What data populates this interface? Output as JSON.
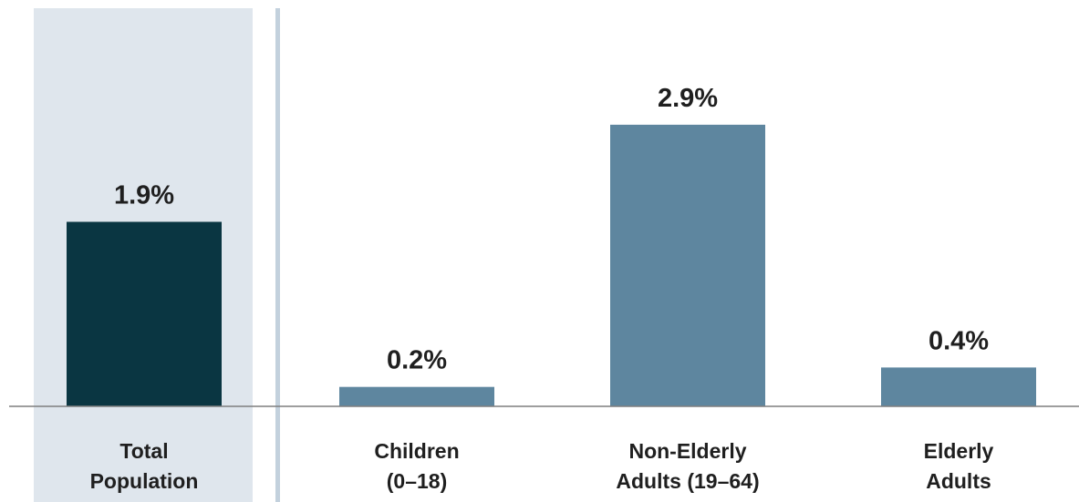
{
  "chart_data": {
    "type": "bar",
    "categories": [
      [
        "Total",
        "Population"
      ],
      [
        "Children",
        "(0–18)"
      ],
      [
        "Non-Elderly",
        "Adults (19–64)"
      ],
      [
        "Elderly",
        "Adults"
      ]
    ],
    "values": [
      1.9,
      0.2,
      2.9,
      0.4
    ],
    "value_labels": [
      "1.9%",
      "0.2%",
      "2.9%",
      "0.4%"
    ],
    "ylim": [
      0,
      4.1
    ],
    "grid": false,
    "colors": {
      "highlight_bar": "#0a3642",
      "bar": "#5e869f",
      "highlight_panel": "#dfe6ed",
      "divider": "#c3d1dd",
      "baseline": "#7f7f7f"
    }
  }
}
